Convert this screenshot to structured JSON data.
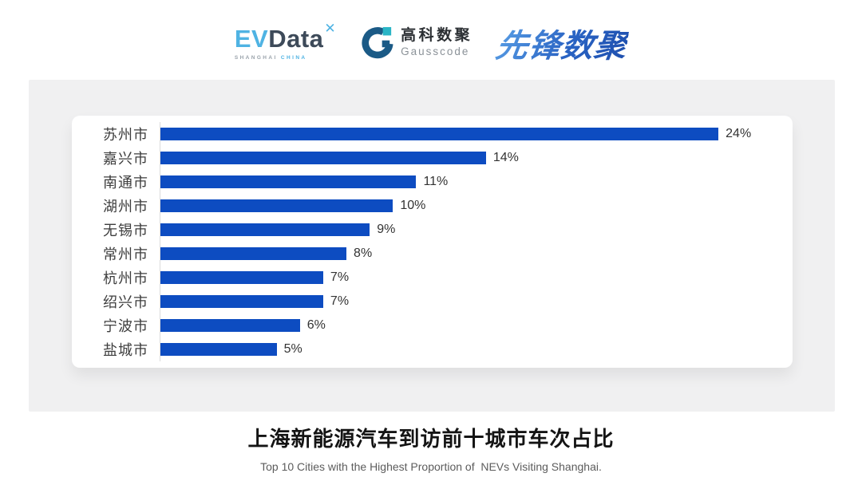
{
  "header": {
    "evdata_logo": {
      "ev": "EV",
      "word": "Data",
      "spark_icon": "sparkle-x",
      "sub_left": "SHANGHAI",
      "sub_right": "CHINA"
    },
    "gausscode_logo": {
      "icon": "g-ring-icon",
      "cn": "高科数聚",
      "en": "Gausscode"
    },
    "pioneer_logo": {
      "text": "先锋数聚"
    }
  },
  "chart_data": {
    "type": "bar",
    "orientation": "horizontal",
    "categories": [
      "苏州市",
      "嘉兴市",
      "南通市",
      "湖州市",
      "无锡市",
      "常州市",
      "杭州市",
      "绍兴市",
      "宁波市",
      "盐城市"
    ],
    "values": [
      24,
      14,
      11,
      10,
      9,
      8,
      7,
      7,
      6,
      5
    ],
    "value_labels": [
      "24%",
      "14%",
      "11%",
      "10%",
      "9%",
      "8%",
      "7%",
      "7%",
      "6%",
      "5%"
    ],
    "title": "上海新能源汽车到访前十城市车次占比",
    "subtitle": "Top 10 Cities with the Highest Proportion of  NEVs Visiting Shanghai.",
    "xlabel": "",
    "ylabel": "",
    "xlim": [
      0,
      26.5
    ],
    "grid": false,
    "legend": false,
    "bar_color": "#0d4cc1",
    "axis_line_color": "#dcdcdc"
  },
  "colors": {
    "bar_blue": "#0d4cc1",
    "panel_gray": "#f0f0f1",
    "evdata_light_blue": "#4fb3e3",
    "evdata_slate": "#3d4a59",
    "gauss_navy": "#1b5a86",
    "gauss_teal": "#2ab5c6",
    "pioneer_blue": "#2f6ecf"
  }
}
